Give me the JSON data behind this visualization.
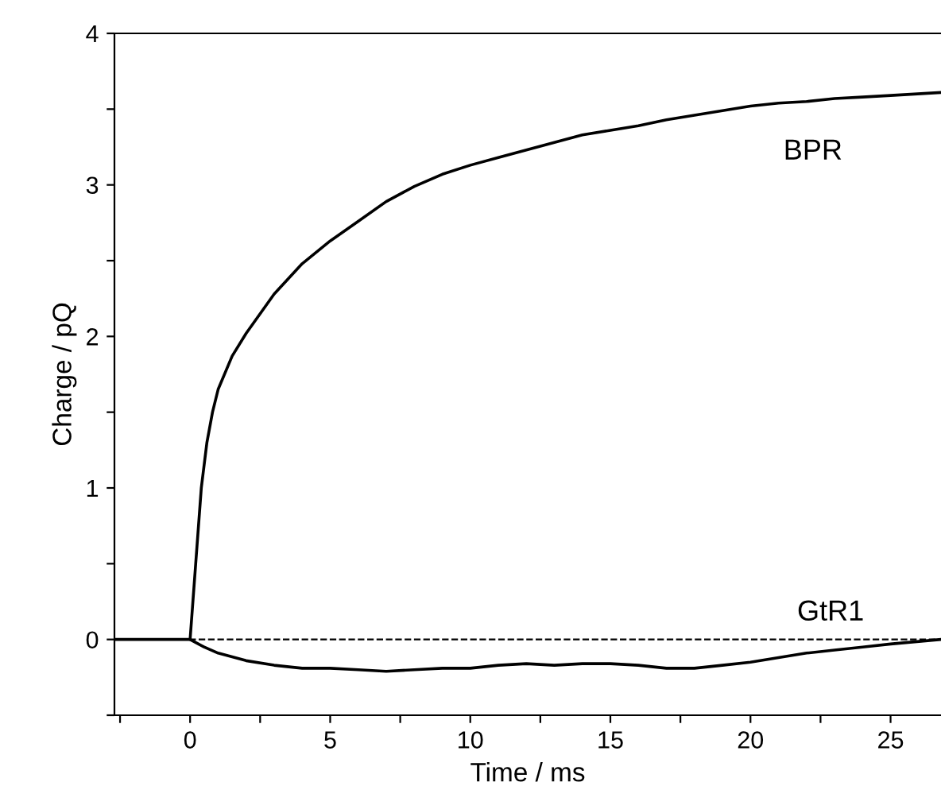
{
  "chart_data": {
    "type": "line",
    "xlabel": "Time / ms",
    "ylabel": "Charge / pQ",
    "xlim": [
      -2.7,
      26.8
    ],
    "ylim": [
      -0.5,
      4
    ],
    "xticks": [
      {
        "value": -2.5,
        "label": null
      },
      0,
      {
        "value": 2.5,
        "label": null
      },
      5,
      {
        "value": 7.5,
        "label": null
      },
      10,
      {
        "value": 12.5,
        "label": null
      },
      15,
      {
        "value": 17.5,
        "label": null
      },
      20,
      {
        "value": 22.5,
        "label": null
      },
      25
    ],
    "yticks": [
      {
        "value": -0.5,
        "label": null
      },
      0,
      {
        "value": 0.5,
        "label": null
      },
      1,
      {
        "value": 1.5,
        "label": null
      },
      2,
      {
        "value": 2.5,
        "label": null
      },
      3,
      {
        "value": 3.5,
        "label": null
      },
      4
    ],
    "grid": false,
    "legend": false,
    "marker": "none",
    "line_style": "solid",
    "series": [
      {
        "name": "BPR",
        "color": "#000000",
        "x": [
          -2.7,
          -1,
          0,
          0.2,
          0.4,
          0.6,
          0.8,
          1,
          1.5,
          2,
          3,
          4,
          5,
          6,
          7,
          8,
          9,
          10,
          11,
          12,
          13,
          14,
          15,
          16,
          17,
          18,
          19,
          20,
          21,
          22,
          23,
          24,
          25,
          26.8
        ],
        "values": [
          0,
          0,
          0,
          0.5,
          1.0,
          1.3,
          1.5,
          1.65,
          1.87,
          2.02,
          2.28,
          2.48,
          2.63,
          2.76,
          2.89,
          2.99,
          3.07,
          3.13,
          3.18,
          3.23,
          3.28,
          3.33,
          3.36,
          3.39,
          3.43,
          3.46,
          3.49,
          3.52,
          3.54,
          3.55,
          3.57,
          3.58,
          3.59,
          3.61
        ]
      },
      {
        "name": "GtR1",
        "color": "#000000",
        "x": [
          0,
          0.5,
          1,
          2,
          3,
          4,
          5,
          6,
          7,
          8,
          9,
          10,
          11,
          12,
          13,
          14,
          15,
          16,
          17,
          18,
          19,
          20,
          21,
          22,
          23,
          24,
          25,
          26.8
        ],
        "values": [
          0,
          -0.05,
          -0.09,
          -0.14,
          -0.17,
          -0.19,
          -0.19,
          -0.2,
          -0.21,
          -0.2,
          -0.19,
          -0.19,
          -0.17,
          -0.16,
          -0.17,
          -0.16,
          -0.16,
          -0.17,
          -0.19,
          -0.19,
          -0.17,
          -0.15,
          -0.12,
          -0.09,
          -0.07,
          -0.05,
          -0.03,
          0.0
        ]
      }
    ],
    "ref_lines": [
      {
        "axis": "y",
        "value": 0,
        "color": "#000000",
        "line_style": "dashed"
      }
    ]
  }
}
